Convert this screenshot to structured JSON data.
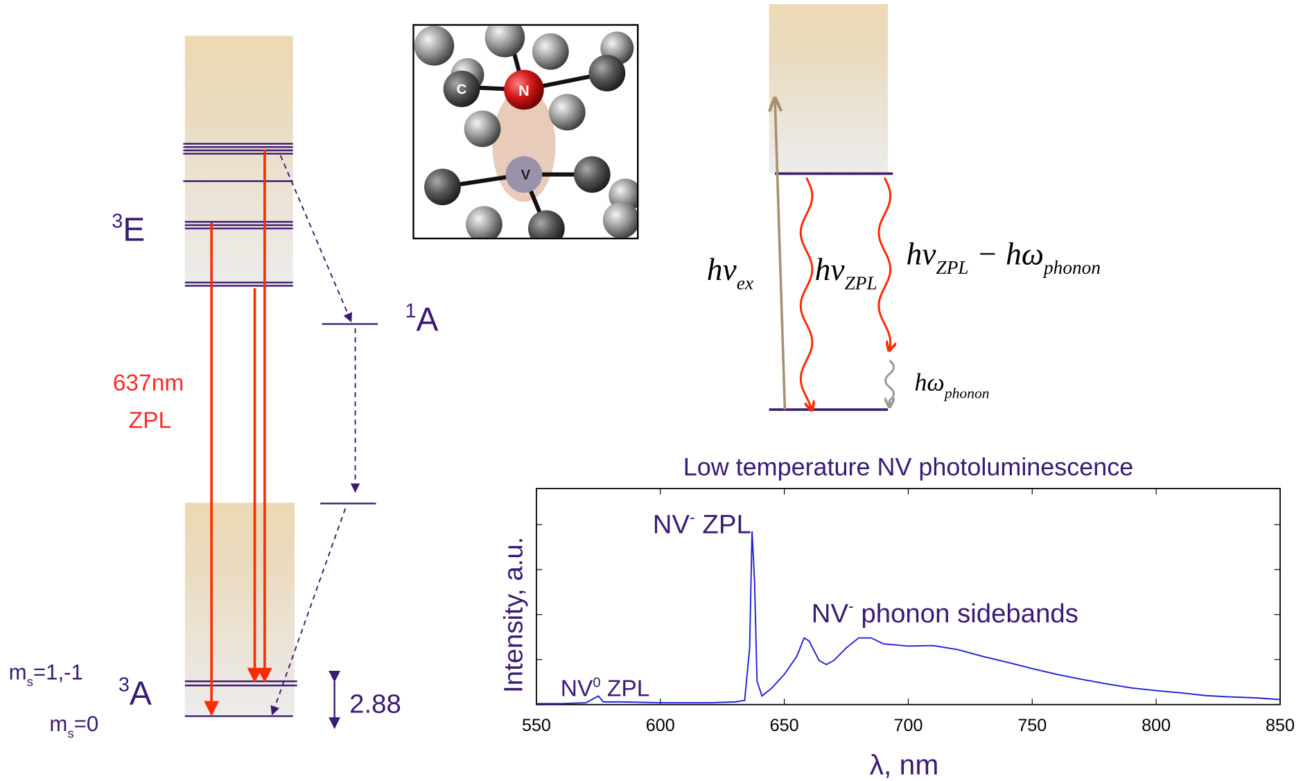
{
  "chart_data": {
    "type": "line",
    "title": "Low temperature NV photoluminescence",
    "x_label": "λ, nm",
    "y_label": "Intensity, a.u.",
    "color": "#1f1fd6",
    "x": [
      550,
      560,
      570,
      575,
      577,
      585,
      600,
      620,
      630,
      634,
      636,
      637,
      638,
      639,
      641,
      645,
      650,
      655,
      658,
      660,
      664,
      667,
      670,
      675,
      680,
      685,
      690,
      700,
      710,
      720,
      730,
      740,
      750,
      760,
      770,
      780,
      790,
      800,
      810,
      820,
      830,
      840,
      850
    ],
    "values": [
      0.02,
      0.02,
      0.04,
      0.19,
      0.06,
      0.06,
      0.04,
      0.04,
      0.06,
      0.09,
      1.26,
      3.85,
      2.74,
      0.52,
      0.19,
      0.37,
      0.67,
      1.07,
      1.48,
      1.41,
      0.98,
      0.89,
      0.98,
      1.26,
      1.48,
      1.48,
      1.35,
      1.3,
      1.31,
      1.22,
      1.07,
      0.94,
      0.8,
      0.67,
      0.56,
      0.46,
      0.37,
      0.31,
      0.26,
      0.2,
      0.17,
      0.15,
      0.11
    ],
    "xlim": [
      550,
      850
    ],
    "xticks": [
      550,
      600,
      650,
      700,
      750,
      800,
      850
    ],
    "ylim": [
      0,
      4.8
    ],
    "yticks": [
      1,
      2,
      3,
      4
    ],
    "grid": false,
    "annotations": [
      [
        "NV",
        "-",
        " ZPL"
      ],
      [
        "NV",
        "-",
        " phonon sidebands"
      ],
      [
        "NV",
        "0",
        " ZPL"
      ]
    ]
  },
  "energy_diagram": {
    "excited": [
      "3",
      "E"
    ],
    "singlet": [
      "1",
      "A"
    ],
    "ground": [
      "3",
      "A"
    ],
    "zpl_wavelength": "637nm",
    "zpl": "ZPL",
    "ms_upper": [
      "m",
      "s",
      "=1,-1"
    ],
    "ms_lower": [
      "m",
      "s",
      "=0"
    ],
    "splitting": "2.88"
  },
  "crystal": {
    "carbon": "C",
    "nitrogen": "N",
    "vacancy": "V"
  },
  "phonon_diagram": {
    "excitation": [
      "hν",
      "ex"
    ],
    "zpl": [
      "hν",
      "ZPL"
    ],
    "sideband": [
      "hν",
      "ZPL",
      " − hω",
      "phonon"
    ],
    "phonon": [
      "hω",
      "phonon"
    ]
  }
}
